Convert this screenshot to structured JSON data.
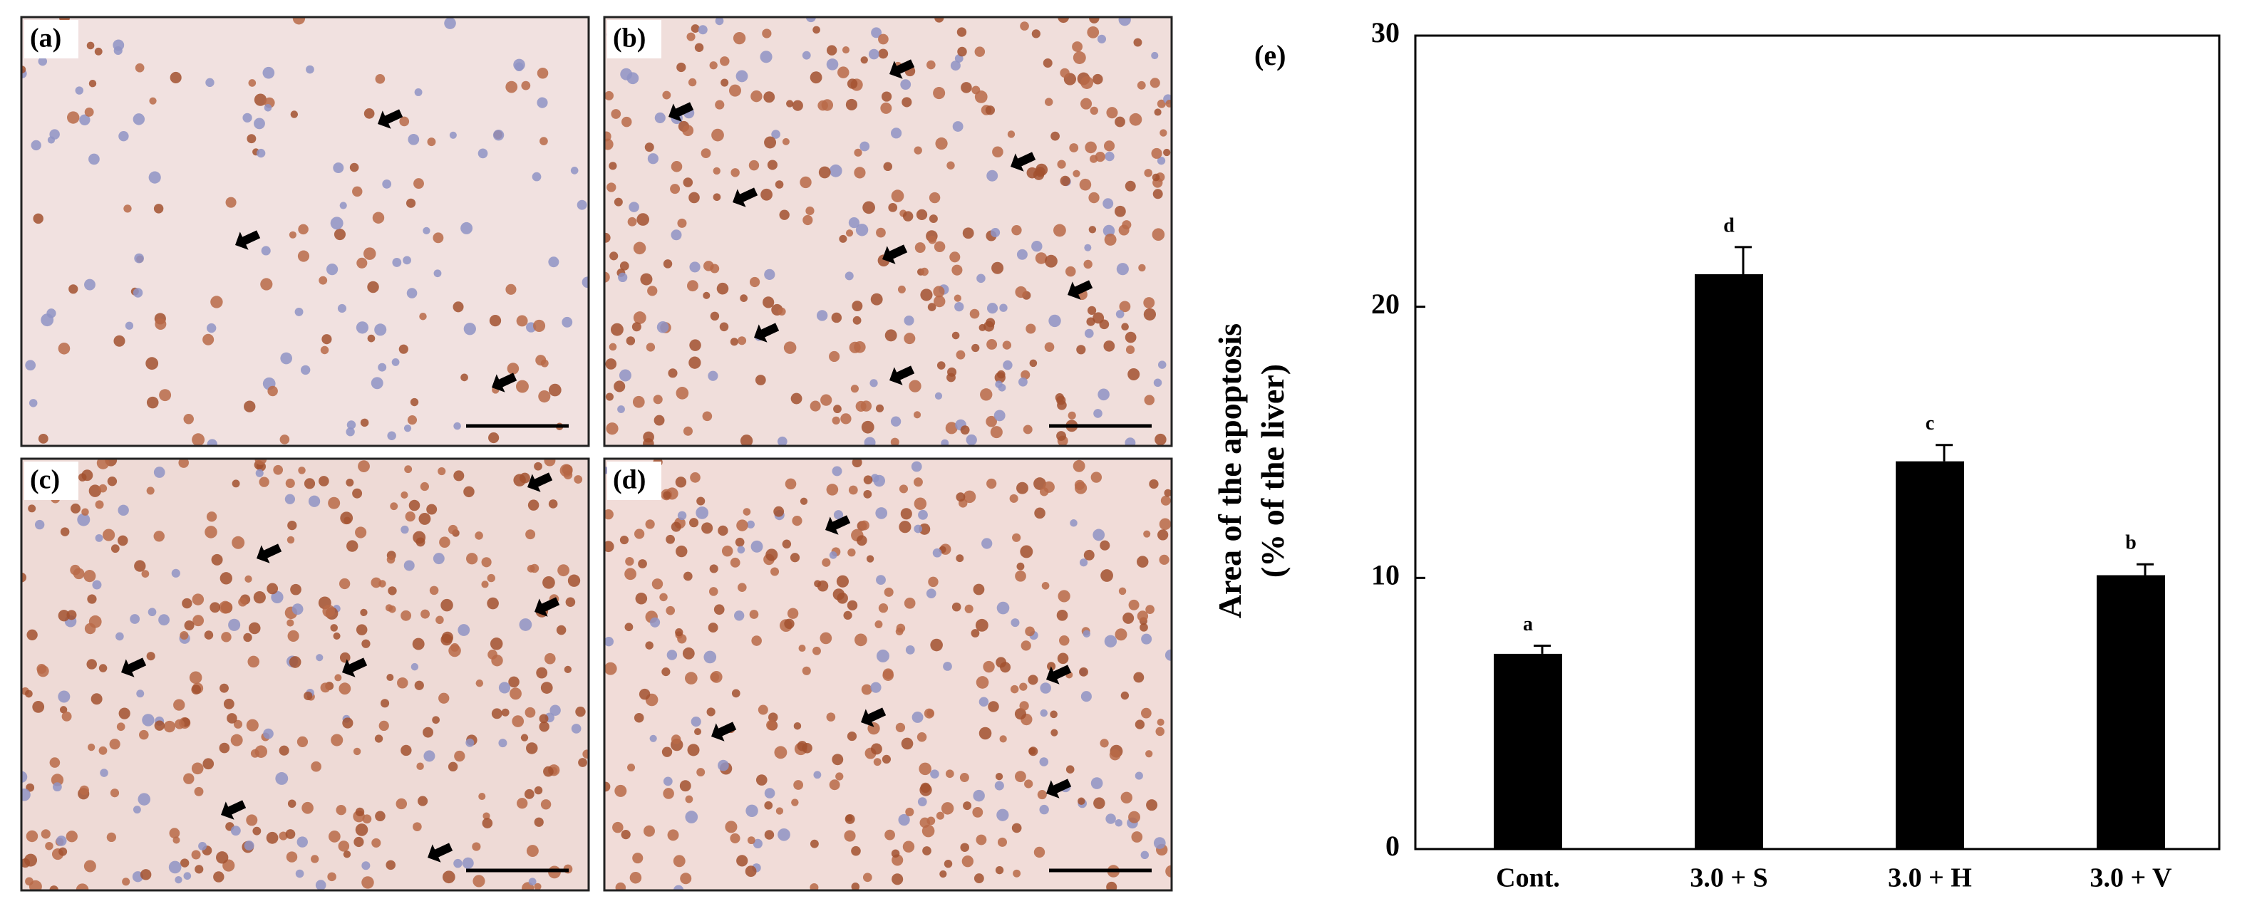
{
  "panels": [
    "(a)",
    "(b)",
    "(c)",
    "(d)"
  ],
  "chart_data": {
    "type": "bar",
    "panel_label": "(e)",
    "y_label": [
      "Area of the apoptosis",
      "(% of the liver)"
    ],
    "categories": [
      "Cont.",
      "3.0 + S",
      "3.0 + H",
      "3.0 + V"
    ],
    "values": [
      7.2,
      21.2,
      14.3,
      10.1
    ],
    "errors": [
      0.3,
      1.0,
      0.6,
      0.4
    ],
    "significance_letters": [
      "a",
      "d",
      "c",
      "b"
    ],
    "color": "#000000",
    "ylim": [
      0,
      30
    ],
    "yticks": [
      0,
      10,
      20,
      30
    ],
    "grid": false
  }
}
